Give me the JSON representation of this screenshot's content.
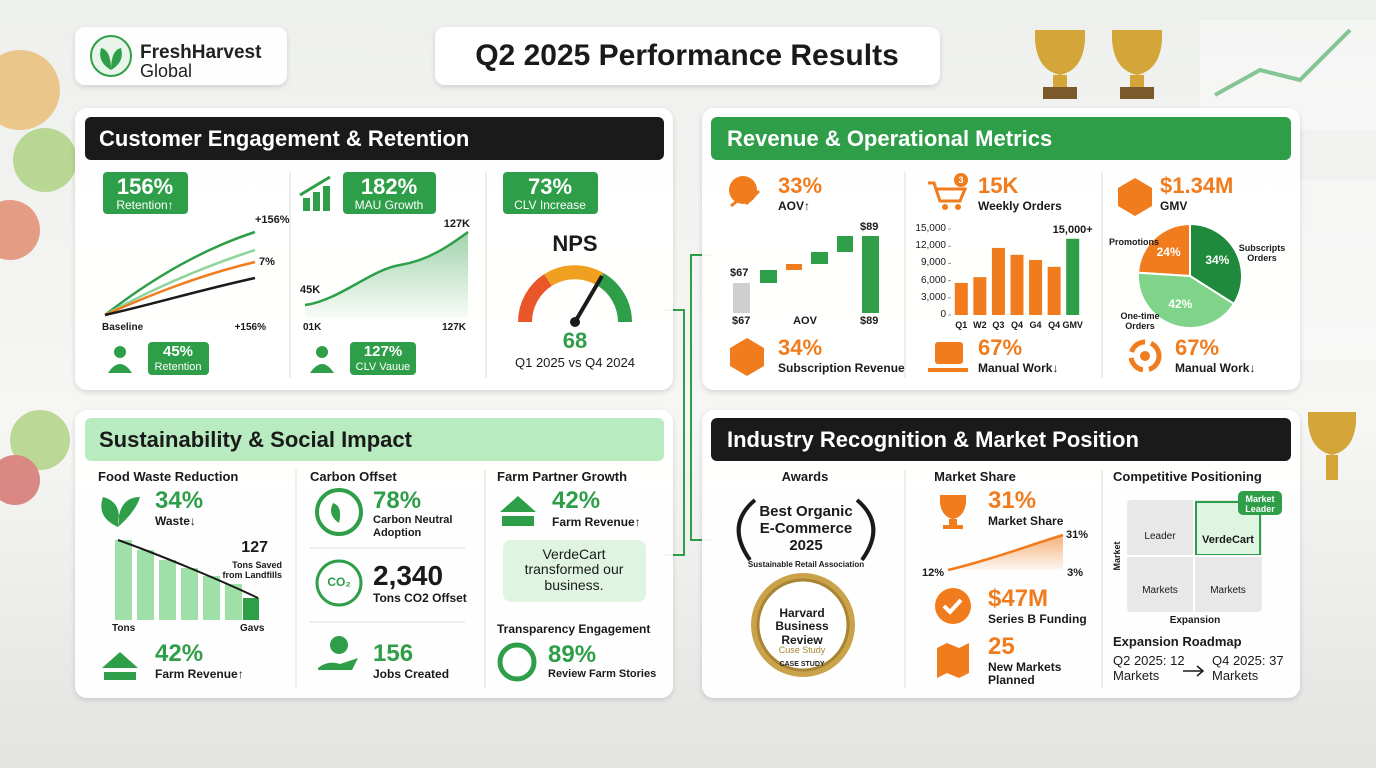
{
  "header": {
    "brand": "FreshHarvest",
    "brand_sub": "Global",
    "title": "Q2 2025 Performance Results"
  },
  "customer": {
    "title": "Customer Engagement & Retention",
    "retention_value": "156%",
    "retention_label": "Retention↑",
    "line_label_top": "+156%",
    "line_label_mid": "7%",
    "line_axis_start": "Baseline",
    "line_axis_end": "+156%",
    "mau_value": "182%",
    "mau_label": "MAU Growth",
    "mau_end": "127K",
    "mau_start": "45K",
    "mau_axis_start": "01K",
    "mau_axis_end": "127K",
    "clv_value": "73%",
    "clv_label": "CLV Increase",
    "nps_title": "NPS",
    "nps_value": "68",
    "nps_caption": "Q1 2025 vs Q4 2024",
    "retention2_value": "45%",
    "retention2_label": "Retention",
    "clv2_value": "127%",
    "clv2_label": "CLV Vauue"
  },
  "revenue": {
    "title": "Revenue & Operational Metrics",
    "aov_value": "33%",
    "aov_label": "AOV↑",
    "wf_start": "$67",
    "wf_end": "$89",
    "wf_axis_start": "$67",
    "wf_axis_mid": "AOV",
    "wf_axis_end": "$89",
    "cart_badge": "3",
    "orders_value": "15K",
    "orders_label": "Weekly Orders",
    "gmv_value": "$1.34M",
    "gmv_label": "GMV",
    "sub_value": "34%",
    "sub_label": "Subscription Revenue",
    "manual_value": "67%",
    "manual_label": "Manual Work↓",
    "manual2_value": "67%",
    "manual2_label": "Manual Work↓"
  },
  "sustainability": {
    "title": "Sustainability & Social Impact",
    "waste_heading": "Food Waste Reduction",
    "waste_value": "34%",
    "waste_label": "Waste↓",
    "tons_value": "127",
    "tons_label": "Tons Saved from Landfills",
    "axis_start": "Tons",
    "axis_end": "Gavs",
    "farm_value": "42%",
    "farm_label": "Farm Revenue↑",
    "carbon_heading": "Carbon Offset",
    "carbon_value": "78%",
    "carbon_label": "Carbon Neutral Adoption",
    "co2_icon": "CO₂",
    "co2_value": "2,340",
    "co2_label": "Tons CO2 Offset",
    "jobs_value": "156",
    "jobs_label": "Jobs Created",
    "partner_heading": "Farm Partner Growth",
    "partner_value": "42%",
    "partner_label": "Farm Revenue↑",
    "quote": "VerdeCart transformed our business.",
    "transparency_heading": "Transparency Engagement",
    "transparency_value": "89%",
    "transparency_label": "Review Farm Stories"
  },
  "industry": {
    "title": "Industry Recognition & Market Position",
    "awards_heading": "Awards",
    "award_name": "Best Organic E-Commerce 2025",
    "award_org": "Sustainable Retail Association",
    "seal_title": "Harvard Business Review",
    "seal_sub": "Cuse Study",
    "seal_foot": "CASE STUDY",
    "share_heading": "Market Share",
    "share_value": "31%",
    "share_label": "Market Share",
    "share_end": "31%",
    "share_left": "12%",
    "share_right": "3%",
    "funding_value": "$47M",
    "funding_label": "Series B Funding",
    "markets_value": "25",
    "markets_label": "New Markets Planned",
    "positioning_heading": "Competitive Positioning",
    "quad_leader": "Leader",
    "quad_brand": "VerdeCart",
    "quad_markets_a": "Markets",
    "quad_markets_b": "Markets",
    "leader_badge": "Market Leader",
    "axis_y": "Market",
    "axis_x": "Expansion",
    "roadmap_heading": "Expansion Roadmap",
    "roadmap_from": "Q2 2025: 12 Markets",
    "roadmap_to": "Q4 2025: 37 Markets"
  },
  "chart_data": [
    {
      "type": "bar",
      "categories": [
        "Q1",
        "W2",
        "Q3",
        "Q4",
        "G4",
        "Q4",
        "GMV"
      ],
      "values": [
        5600,
        6600,
        11700,
        10500,
        9600,
        8400,
        13300
      ],
      "colors": [
        "#f07c1e",
        "#f07c1e",
        "#f07c1e",
        "#f07c1e",
        "#f07c1e",
        "#f07c1e",
        "#2e9e48"
      ],
      "ylim": [
        0,
        15000
      ],
      "yticks": [
        0,
        {
          "value": 3000,
          "label": "3,000"
        },
        {
          "value": 6000,
          "label": "6,000"
        },
        {
          "value": 9000,
          "label": "9,000"
        },
        {
          "value": 12000,
          "label": "12,000"
        },
        {
          "value": 15000,
          "label": "15,000"
        }
      ],
      "annotation": "15,000+"
    },
    {
      "type": "pie",
      "categories": [
        "Promotions",
        "Subscripts Orders",
        "One-time Orders"
      ],
      "values": [
        24,
        34,
        42
      ],
      "value_labels": [
        "24%",
        "34%",
        "42%"
      ],
      "colors": [
        "#f07c1e",
        "#1f8a3c",
        "#7fd48a"
      ]
    }
  ]
}
